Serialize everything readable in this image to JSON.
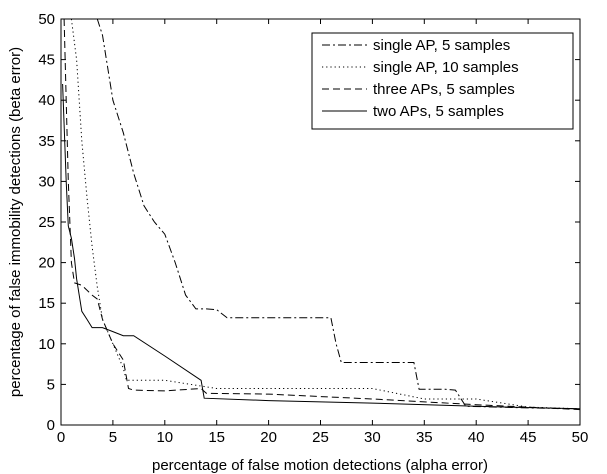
{
  "chart_data": {
    "type": "line",
    "title": "",
    "xlabel": "percentage of false motion detections (alpha error)",
    "ylabel": "percentage of false immobility detections (beta error)",
    "xlim": [
      0,
      50
    ],
    "ylim": [
      0,
      50
    ],
    "xticks": [
      "0",
      "5",
      "10",
      "15",
      "20",
      "25",
      "30",
      "35",
      "40",
      "45",
      "50"
    ],
    "yticks": [
      "0",
      "5",
      "10",
      "15",
      "20",
      "25",
      "30",
      "35",
      "40",
      "45",
      "50"
    ],
    "grid": false,
    "legend_position": "top-right",
    "series": [
      {
        "name": "single AP, 5 samples",
        "style": "dashdot",
        "points": [
          [
            3.5,
            50
          ],
          [
            4.0,
            48
          ],
          [
            4.5,
            44
          ],
          [
            5.0,
            40
          ],
          [
            6.0,
            36
          ],
          [
            7.0,
            31
          ],
          [
            8.0,
            27
          ],
          [
            9.0,
            25
          ],
          [
            10.0,
            23.5
          ],
          [
            11.0,
            20
          ],
          [
            12.0,
            16
          ],
          [
            13.0,
            14.3
          ],
          [
            14.0,
            14.3
          ],
          [
            15.0,
            14.2
          ],
          [
            16.0,
            13.2
          ],
          [
            20.0,
            13.2
          ],
          [
            26.0,
            13.2
          ],
          [
            26.5,
            10
          ],
          [
            27.0,
            7.7
          ],
          [
            30.0,
            7.7
          ],
          [
            34.0,
            7.7
          ],
          [
            34.5,
            4.4
          ],
          [
            37.0,
            4.4
          ],
          [
            38.0,
            4.3
          ],
          [
            39.0,
            2.3
          ],
          [
            45.0,
            2.1
          ],
          [
            50.0,
            2.0
          ]
        ]
      },
      {
        "name": "single AP, 10 samples",
        "style": "dotted",
        "points": [
          [
            1.0,
            50
          ],
          [
            1.5,
            45
          ],
          [
            2.0,
            35
          ],
          [
            2.5,
            28
          ],
          [
            3.0,
            22
          ],
          [
            3.5,
            17
          ],
          [
            4.0,
            13
          ],
          [
            5.0,
            10
          ],
          [
            6.0,
            7
          ],
          [
            6.3,
            5.5
          ],
          [
            7.0,
            5.5
          ],
          [
            10.0,
            5.5
          ],
          [
            15.0,
            4.5
          ],
          [
            20.0,
            4.5
          ],
          [
            30.0,
            4.5
          ],
          [
            35.0,
            3.2
          ],
          [
            40.0,
            3.2
          ],
          [
            45.0,
            2.2
          ],
          [
            50.0,
            2.0
          ]
        ]
      },
      {
        "name": "three APs, 5 samples",
        "style": "dashed",
        "points": [
          [
            0.3,
            50
          ],
          [
            0.5,
            40
          ],
          [
            0.7,
            30
          ],
          [
            1.0,
            20
          ],
          [
            1.3,
            17.5
          ],
          [
            2.0,
            17.2
          ],
          [
            3.0,
            16.0
          ],
          [
            3.5,
            15.5
          ],
          [
            4.0,
            13
          ],
          [
            5.0,
            10
          ],
          [
            6.0,
            8
          ],
          [
            6.5,
            4.5
          ],
          [
            7.0,
            4.3
          ],
          [
            10.0,
            4.2
          ],
          [
            13.5,
            4.5
          ],
          [
            14.0,
            3.9
          ],
          [
            20.0,
            3.8
          ],
          [
            30.0,
            3.2
          ],
          [
            40.0,
            2.5
          ],
          [
            50.0,
            1.9
          ]
        ]
      },
      {
        "name": "two APs, 5 samples",
        "style": "solid",
        "points": [
          [
            0.15,
            42
          ],
          [
            0.3,
            37
          ],
          [
            0.5,
            30
          ],
          [
            0.7,
            24.5
          ],
          [
            1.0,
            23
          ],
          [
            1.3,
            20.5
          ],
          [
            1.5,
            18
          ],
          [
            2.0,
            14
          ],
          [
            2.5,
            13
          ],
          [
            3.0,
            12.0
          ],
          [
            4.0,
            12.0
          ],
          [
            5.0,
            11.5
          ],
          [
            6.0,
            11.0
          ],
          [
            7.0,
            11.0
          ],
          [
            10.0,
            8.5
          ],
          [
            13.5,
            5.5
          ],
          [
            13.8,
            3.3
          ],
          [
            20.0,
            3.0
          ],
          [
            30.0,
            2.7
          ],
          [
            40.0,
            2.3
          ],
          [
            50.0,
            2.0
          ]
        ]
      }
    ]
  }
}
